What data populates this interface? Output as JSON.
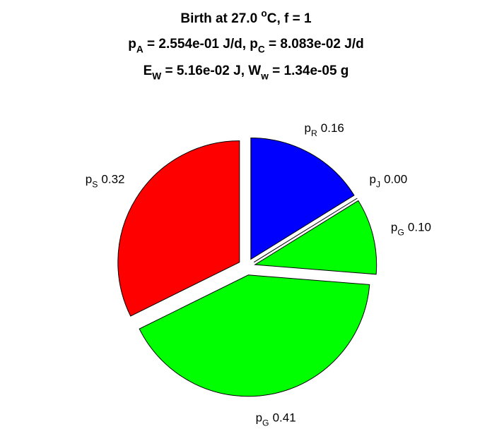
{
  "chart_data": {
    "type": "pie",
    "title": [
      [
        {
          "text": "Birth at 27.0 "
        },
        {
          "sup": "o"
        },
        {
          "text": "C, f = 1"
        }
      ],
      [
        {
          "text": "p"
        },
        {
          "sub": "A"
        },
        {
          "text": " = 2.554e-01 J/d, p"
        },
        {
          "sub": "C"
        },
        {
          "text": " = 8.083e-02 J/d"
        }
      ],
      [
        {
          "text": "E"
        },
        {
          "sub": "W"
        },
        {
          "text": " = 5.16e-02 J, W"
        },
        {
          "sub": "w"
        },
        {
          "text": " = 1.34e-05 g"
        }
      ]
    ],
    "categories": [
      {
        "text": "p",
        "sub": "R"
      },
      {
        "text": "p",
        "sub": "J"
      },
      {
        "text": "p",
        "sub": "G"
      },
      {
        "text": "p",
        "sub": "G"
      },
      {
        "text": "p",
        "sub": "S"
      }
    ],
    "values": [
      0.16,
      0,
      0.1,
      0.41,
      0.32
    ],
    "value_labels": [
      "0.16",
      "0.00",
      "0.10",
      "0.41",
      "0.32"
    ],
    "colors": [
      "#0000ff",
      null,
      "#00ff00",
      "#00ff00",
      "#ff0000"
    ]
  }
}
